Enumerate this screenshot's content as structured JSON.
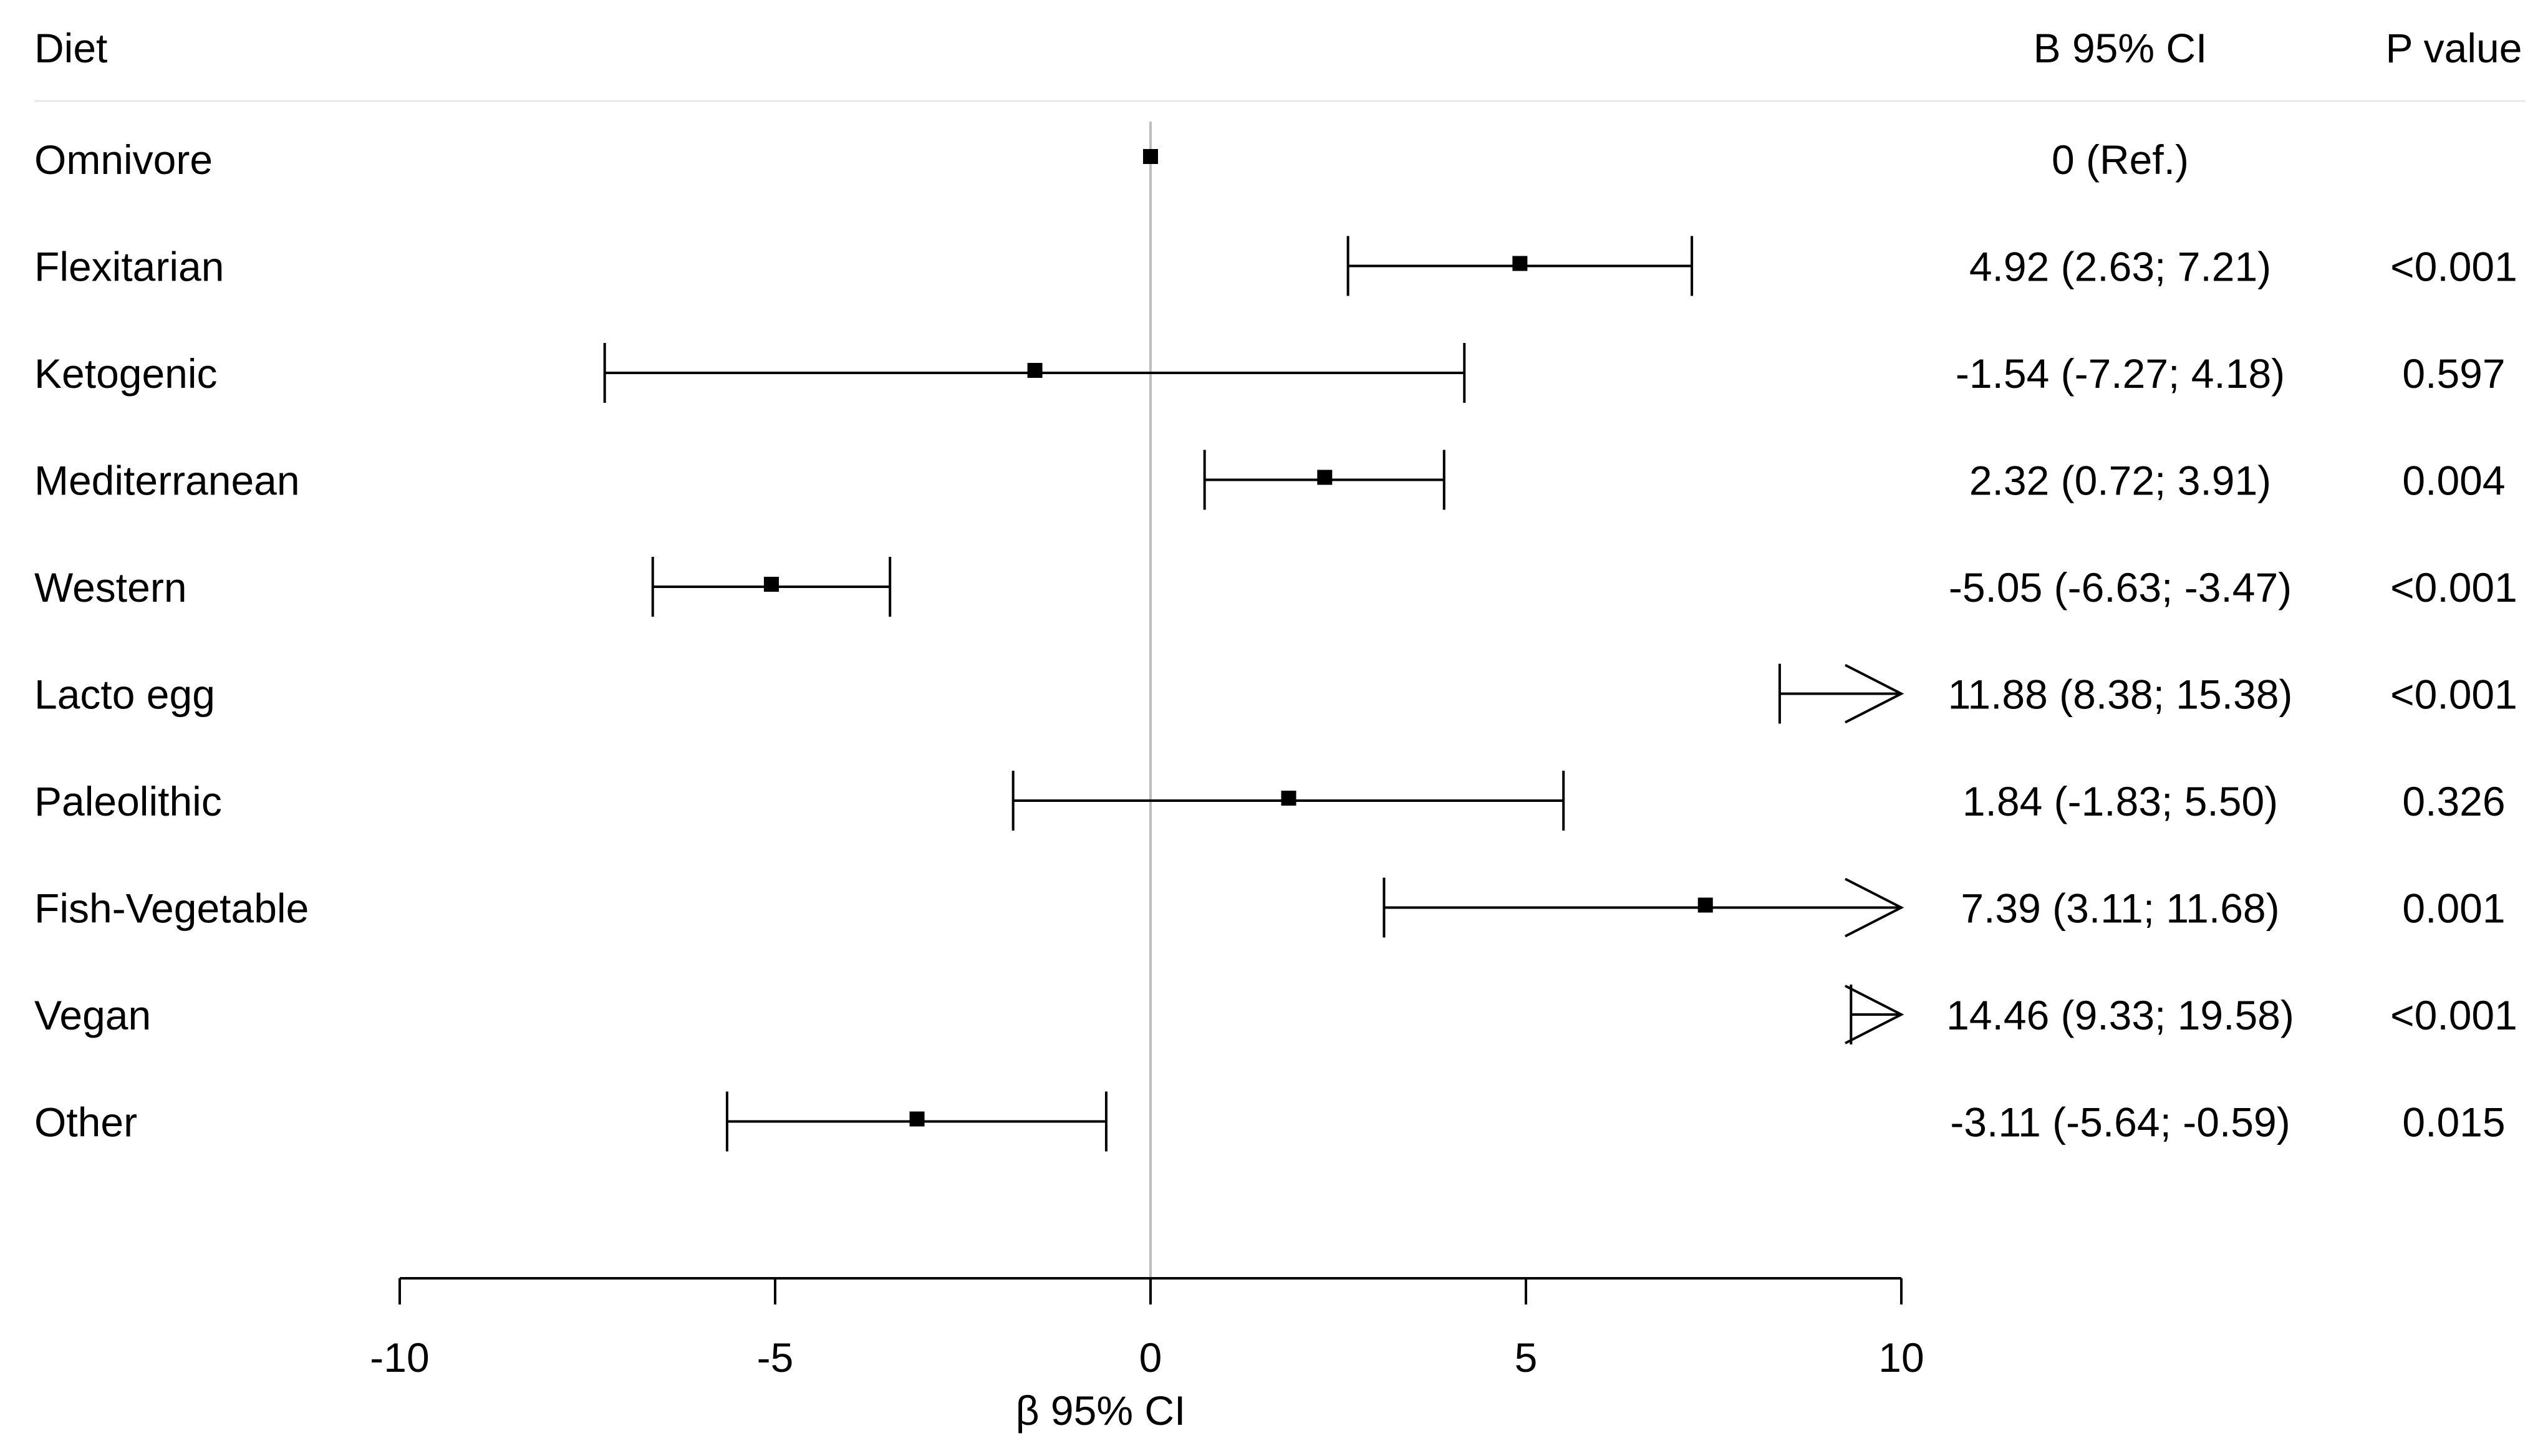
{
  "chart_data": {
    "type": "forest",
    "columns": {
      "label": "Diet",
      "estimate": "B 95% CI",
      "p": "P value"
    },
    "xlabel": "β 95% CI",
    "xlim": [
      -10,
      10
    ],
    "xticks": [
      -10,
      -5,
      0,
      5,
      10
    ],
    "reference_line": 0,
    "rows": [
      {
        "label": "Omnivore",
        "beta": 0,
        "lo": 0,
        "hi": 0,
        "text": "0 (Ref.)",
        "p": ""
      },
      {
        "label": "Flexitarian",
        "beta": 4.92,
        "lo": 2.63,
        "hi": 7.21,
        "text": "4.92 (2.63; 7.21)",
        "p": "<0.001"
      },
      {
        "label": "Ketogenic",
        "beta": -1.54,
        "lo": -7.27,
        "hi": 4.18,
        "text": "-1.54 (-7.27; 4.18)",
        "p": "0.597"
      },
      {
        "label": "Mediterranean",
        "beta": 2.32,
        "lo": 0.72,
        "hi": 3.91,
        "text": "2.32 (0.72; 3.91)",
        "p": "0.004"
      },
      {
        "label": "Western",
        "beta": -5.05,
        "lo": -6.63,
        "hi": -3.47,
        "text": "-5.05 (-6.63; -3.47)",
        "p": "<0.001"
      },
      {
        "label": "Lacto egg",
        "beta": 11.88,
        "lo": 8.38,
        "hi": 15.38,
        "text": "11.88 (8.38; 15.38)",
        "p": "<0.001"
      },
      {
        "label": "Paleolithic",
        "beta": 1.84,
        "lo": -1.83,
        "hi": 5.5,
        "text": "1.84 (-1.83; 5.50)",
        "p": "0.326"
      },
      {
        "label": "Fish-Vegetable",
        "beta": 7.39,
        "lo": 3.11,
        "hi": 11.68,
        "text": "7.39 (3.11; 11.68)",
        "p": "0.001"
      },
      {
        "label": "Vegan",
        "beta": 14.46,
        "lo": 9.33,
        "hi": 19.58,
        "text": "14.46 (9.33; 19.58)",
        "p": "<0.001"
      },
      {
        "label": "Other",
        "beta": -3.11,
        "lo": -5.64,
        "hi": -0.59,
        "text": "-3.11 (-5.64; -0.59)",
        "p": "0.015"
      }
    ]
  }
}
